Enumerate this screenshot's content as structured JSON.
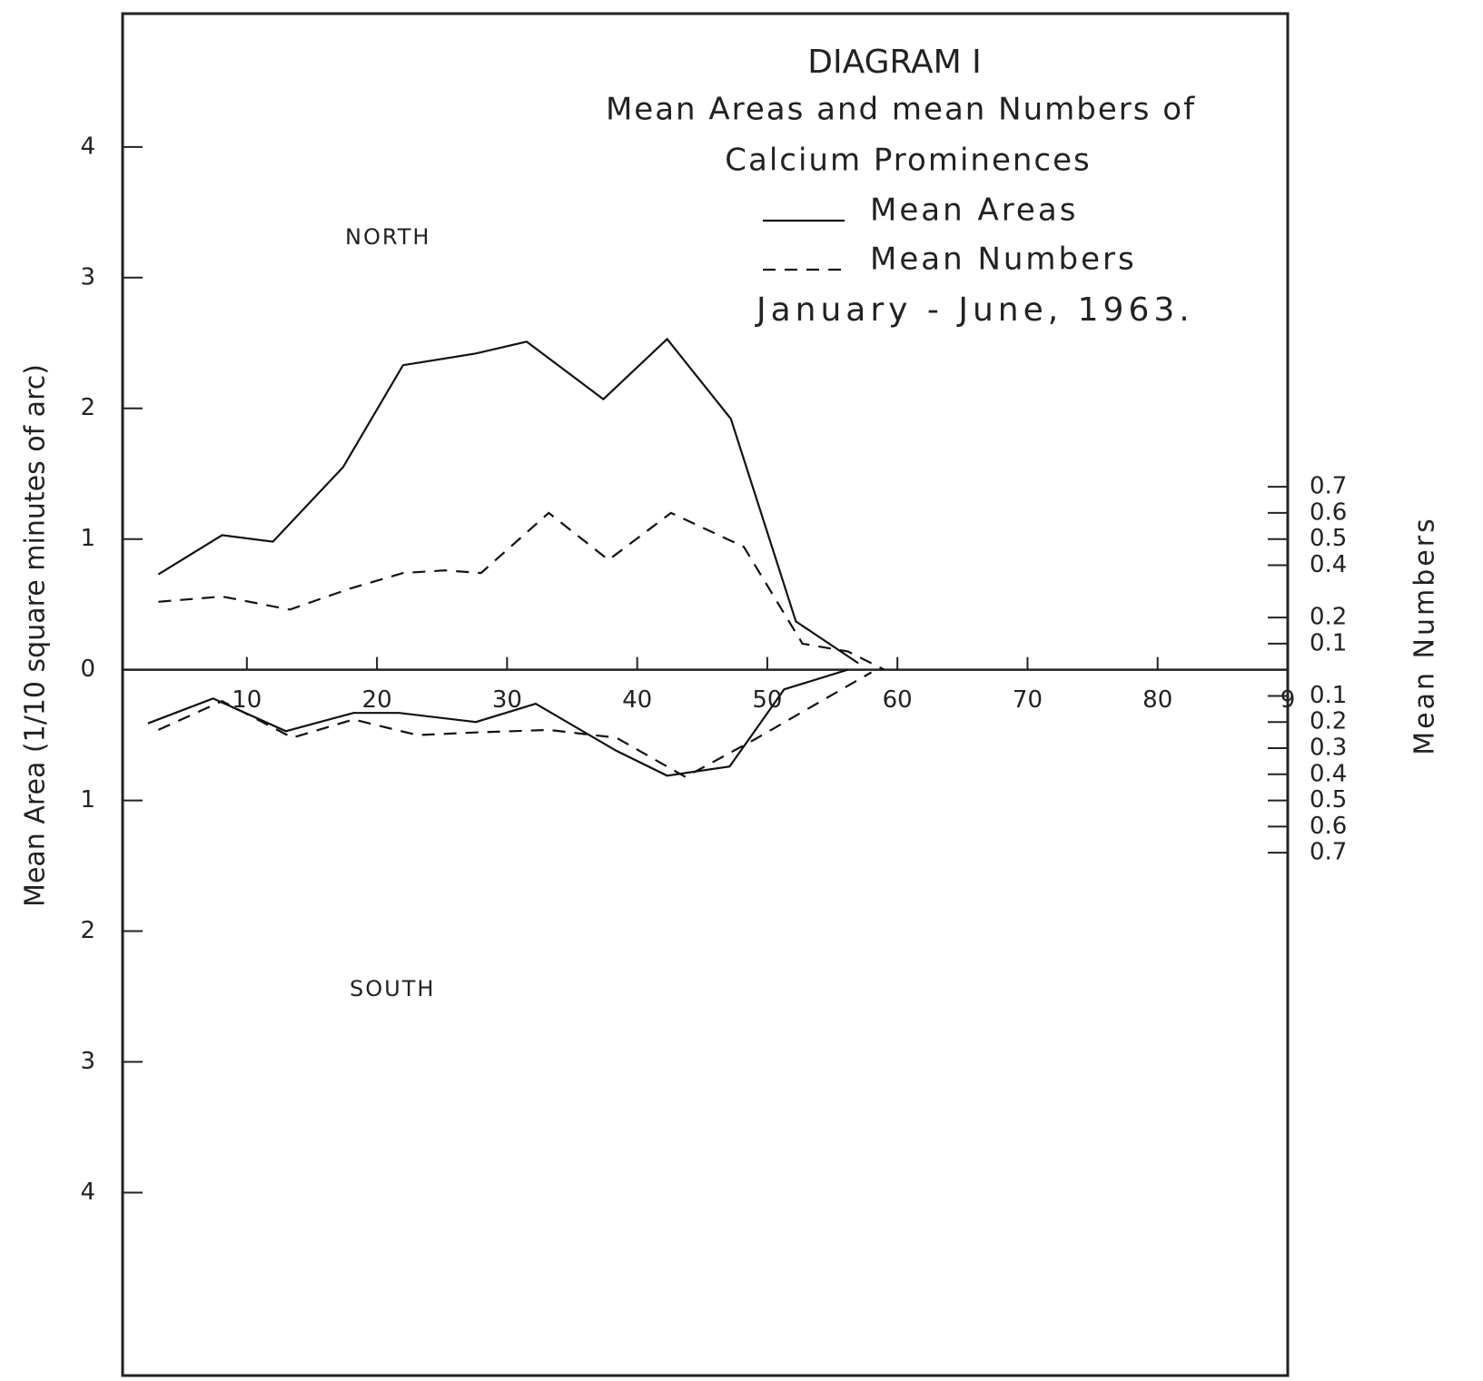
{
  "chart_data": {
    "type": "line",
    "title": "DIAGRAM I",
    "subtitle": [
      "Mean Areas and mean Numbers of",
      "Calcium Prominences"
    ],
    "annotations": [
      "NORTH",
      "SOUTH",
      "January - June, 1963."
    ],
    "y_label": "Mean Area (1/10 square minutes of arc)",
    "y2_label": "Mean Numbers",
    "xlim": [
      0.45,
      90
    ],
    "xticks": [
      10,
      20,
      30,
      40,
      50,
      60,
      70,
      80,
      {
        "value": 90,
        "label": "9"
      }
    ],
    "ylim": [
      -5.4,
      5.02
    ],
    "yticks": [
      4,
      3,
      2,
      1,
      0,
      {
        "value": -1,
        "label": "1"
      },
      {
        "value": -2,
        "label": "2"
      },
      {
        "value": -3,
        "label": "3"
      },
      {
        "value": -4,
        "label": "4"
      }
    ],
    "y2lim": [
      -2.7,
      2.51
    ],
    "y2ticks": [
      0.7,
      0.6,
      0.5,
      0.4,
      0.2,
      0.1,
      {
        "value": -0.1,
        "label": "0.1"
      },
      {
        "value": -0.2,
        "label": "0.2"
      },
      {
        "value": -0.3,
        "label": "0.3"
      },
      {
        "value": -0.4,
        "label": "0.4"
      },
      {
        "value": -0.5,
        "label": "0.5"
      },
      {
        "value": -0.6,
        "label": "0.6"
      },
      {
        "value": -0.7,
        "label": "0.7"
      }
    ],
    "color": "#111111",
    "series": [
      {
        "name": "Mean Areas",
        "dashed": false,
        "x": [
          3.2,
          8.1,
          12,
          17.4,
          22,
          27.6,
          31.5,
          37.4,
          42.3,
          47.2,
          52.2,
          57
        ],
        "values": [
          0.73,
          1.03,
          0.98,
          1.55,
          2.33,
          2.42,
          2.51,
          2.07,
          2.53,
          1.92,
          0.37,
          0.05
        ]
      },
      {
        "name": "Mean Numbers",
        "dashed": true,
        "axis": "y2",
        "x": [
          3.2,
          8.1,
          13.3,
          17.9,
          22,
          25.2,
          28,
          33.2,
          37.8,
          42.6,
          48.2,
          52.7,
          56.2,
          59
        ],
        "values": [
          0.26,
          0.28,
          0.23,
          0.31,
          0.37,
          0.38,
          0.37,
          0.6,
          0.42,
          0.6,
          0.47,
          0.1,
          0.07,
          0
        ]
      },
      {
        "name": "Mean Areas",
        "dashed": false,
        "x": [
          2.4,
          7.4,
          13,
          18.2,
          21.7,
          27.6,
          32.2,
          38.4,
          42.3,
          47.1,
          51.3,
          56.2
        ],
        "values": [
          -0.41,
          -0.22,
          -0.47,
          -0.33,
          -0.33,
          -0.4,
          -0.26,
          -0.62,
          -0.81,
          -0.74,
          -0.15,
          0
        ]
      },
      {
        "name": "Mean Numbers",
        "dashed": true,
        "axis": "y2",
        "x": [
          3.2,
          8.1,
          13.5,
          18.2,
          23.1,
          27.6,
          33.2,
          38.4,
          43.7,
          48.9,
          53.1,
          58
        ],
        "values": [
          -0.23,
          -0.12,
          -0.26,
          -0.19,
          -0.25,
          -0.24,
          -0.23,
          -0.26,
          -0.41,
          -0.27,
          -0.15,
          -0.01
        ]
      }
    ]
  }
}
